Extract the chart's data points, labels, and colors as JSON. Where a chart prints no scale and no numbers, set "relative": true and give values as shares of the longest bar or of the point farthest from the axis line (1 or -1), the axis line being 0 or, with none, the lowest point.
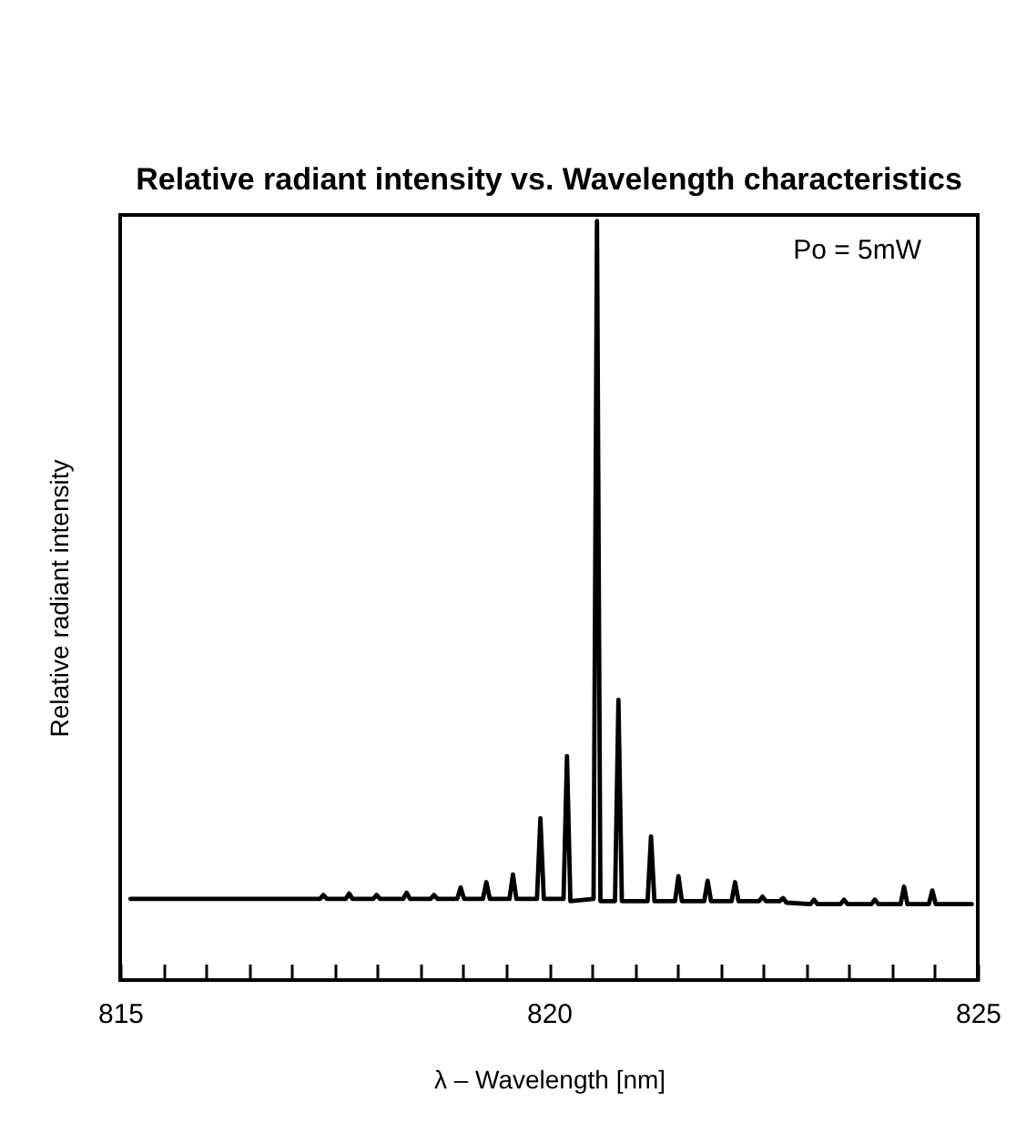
{
  "chart_data": {
    "type": "line",
    "title": "Relative radiant intensity vs.\nWavelength characteristics",
    "xlabel": "λ – Wavelength [nm]",
    "ylabel": "Relative radiant intensity",
    "annotations": [
      "Po = 5mW"
    ],
    "relative": true,
    "xlim": [
      815,
      825
    ],
    "xticks": [
      815,
      {
        "value": 815.5,
        "label": null
      },
      {
        "value": 816,
        "label": null
      },
      {
        "value": 816.5,
        "label": null
      },
      {
        "value": 817,
        "label": null
      },
      {
        "value": 817.5,
        "label": null
      },
      {
        "value": 818,
        "label": null
      },
      {
        "value": 818.5,
        "label": null
      },
      {
        "value": 819,
        "label": null
      },
      {
        "value": 819.5,
        "label": null
      },
      820,
      {
        "value": 820.5,
        "label": null
      },
      {
        "value": 821,
        "label": null
      },
      {
        "value": 821.5,
        "label": null
      },
      {
        "value": 822,
        "label": null
      },
      {
        "value": 822.5,
        "label": null
      },
      {
        "value": 823,
        "label": null
      },
      {
        "value": 823.5,
        "label": null
      },
      {
        "value": 824,
        "label": null
      },
      {
        "value": 824.5,
        "label": null
      },
      825
    ],
    "grid": false,
    "marker": "none",
    "line_style": "solid",
    "series": [
      {
        "color": "#000000",
        "x": [
          815.12,
          817.33,
          817.37,
          817.41,
          817.63,
          817.67,
          817.71,
          817.95,
          817.99,
          818.03,
          818.3,
          818.34,
          818.38,
          818.62,
          818.66,
          818.7,
          818.93,
          818.97,
          819.01,
          819.23,
          819.27,
          819.31,
          819.54,
          819.58,
          819.62,
          819.86,
          819.9,
          819.94,
          820.17,
          820.21,
          820.25,
          820.52,
          820.56,
          820.6,
          820.77,
          820.81,
          820.85,
          821.15,
          821.19,
          821.23,
          821.47,
          821.51,
          821.55,
          821.81,
          821.85,
          821.89,
          822.13,
          822.17,
          822.21,
          822.45,
          822.49,
          822.53,
          822.69,
          822.73,
          822.77,
          823.05,
          823.09,
          823.13,
          823.4,
          823.44,
          823.48,
          823.76,
          823.8,
          823.84,
          824.1,
          824.14,
          824.18,
          824.43,
          824.47,
          824.51,
          824.93
        ],
        "values": [
          0.107,
          0.107,
          0.112,
          0.107,
          0.107,
          0.114,
          0.107,
          0.107,
          0.112,
          0.107,
          0.107,
          0.115,
          0.107,
          0.107,
          0.112,
          0.107,
          0.107,
          0.122,
          0.107,
          0.107,
          0.129,
          0.107,
          0.107,
          0.139,
          0.107,
          0.107,
          0.213,
          0.107,
          0.107,
          0.295,
          0.104,
          0.107,
          1.0,
          0.104,
          0.104,
          0.369,
          0.104,
          0.104,
          0.189,
          0.104,
          0.104,
          0.137,
          0.104,
          0.104,
          0.131,
          0.104,
          0.104,
          0.129,
          0.104,
          0.104,
          0.11,
          0.104,
          0.104,
          0.108,
          0.102,
          0.1,
          0.106,
          0.1,
          0.1,
          0.106,
          0.1,
          0.1,
          0.106,
          0.1,
          0.1,
          0.123,
          0.1,
          0.1,
          0.118,
          0.1,
          0.1
        ]
      }
    ]
  }
}
